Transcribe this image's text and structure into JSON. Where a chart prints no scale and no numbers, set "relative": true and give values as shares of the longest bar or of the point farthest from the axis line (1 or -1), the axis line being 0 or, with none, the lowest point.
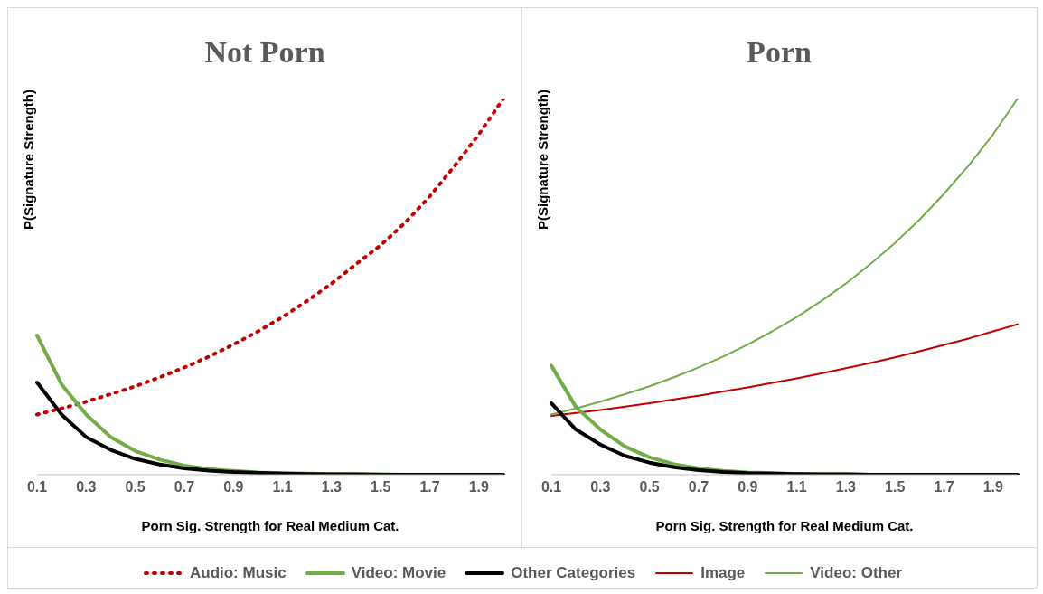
{
  "chart_data": [
    {
      "type": "line",
      "title": "Not Porn",
      "xlabel": "Porn Sig. Strength for Real Medium Cat.",
      "ylabel": "P(Signature Strength)",
      "relative": true,
      "legend": "bottom",
      "grid": false,
      "marker": "none",
      "categories": [
        "0.1",
        null,
        "0.3",
        null,
        "0.5",
        null,
        "0.7",
        null,
        "0.9",
        null,
        "1.1",
        null,
        "1.3",
        null,
        "1.5",
        null,
        "1.7",
        null,
        "1.9",
        null
      ],
      "series": [
        {
          "name": "Audio: Music",
          "color": "#c00000",
          "line_style": "dotted",
          "values": [
            0.16,
            0.176,
            0.194,
            0.214,
            0.235,
            0.259,
            0.285,
            0.314,
            0.346,
            0.381,
            0.419,
            0.462,
            0.508,
            0.56,
            0.61,
            0.67,
            0.74,
            0.82,
            0.905,
            1.0
          ]
        },
        {
          "name": "Video: Movie",
          "color": "#70ad47",
          "line_style": "solid",
          "values": [
            0.37,
            0.24,
            0.16,
            0.1,
            0.063,
            0.04,
            0.024,
            0.015,
            0.01,
            0.006,
            0.004,
            0.003,
            0.002,
            0.001,
            0.001,
            0,
            null,
            null,
            null,
            null
          ]
        },
        {
          "name": "Other Categories",
          "color": "#000000",
          "line_style": "solid",
          "values": [
            0.245,
            0.16,
            0.1,
            0.066,
            0.042,
            0.027,
            0.017,
            0.011,
            0.007,
            0.005,
            0.003,
            0.002,
            0.001,
            0.001,
            0,
            0,
            0,
            0,
            0,
            0
          ]
        }
      ]
    },
    {
      "type": "line",
      "title": "Porn",
      "xlabel": "Porn Sig. Strength for Real Medium Cat.",
      "ylabel": "P(Signature Strength)",
      "relative": true,
      "legend": "bottom",
      "grid": false,
      "marker": "none",
      "categories": [
        "0.1",
        null,
        "0.3",
        null,
        "0.5",
        null,
        "0.7",
        null,
        "0.9",
        null,
        "1.1",
        null,
        "1.3",
        null,
        "1.5",
        null,
        "1.7",
        null,
        "1.9",
        null
      ],
      "series": [
        {
          "name": "Image",
          "color": "#c00000",
          "line_style": "solid",
          "values": [
            0.156,
            0.164,
            0.172,
            0.181,
            0.19,
            0.2,
            0.21,
            0.221,
            0.232,
            0.244,
            0.256,
            0.269,
            0.283,
            0.297,
            0.312,
            0.328,
            0.345,
            0.362,
            0.381,
            0.4
          ]
        },
        {
          "name": "Video: Movie",
          "color": "#70ad47",
          "line_style": "solid",
          "values": [
            0.29,
            0.18,
            0.12,
            0.075,
            0.046,
            0.028,
            0.017,
            0.01,
            0.006,
            0.004,
            0.002,
            0.001,
            0.001,
            0,
            0,
            null,
            null,
            null,
            null,
            null
          ]
        },
        {
          "name": "Video: Other",
          "color": "#70ad47",
          "line_style": "solid",
          "values": [
            0.16,
            0.176,
            0.194,
            0.214,
            0.235,
            0.259,
            0.285,
            0.314,
            0.346,
            0.381,
            0.419,
            0.462,
            0.508,
            0.56,
            0.616,
            0.678,
            0.747,
            0.822,
            0.905,
            1.0
          ]
        },
        {
          "name": "Other Categories",
          "color": "#000000",
          "line_style": "solid",
          "values": [
            0.19,
            0.12,
            0.08,
            0.05,
            0.032,
            0.02,
            0.012,
            0.007,
            0.004,
            0.003,
            0.002,
            0.001,
            0.001,
            0,
            0,
            0,
            0,
            0,
            0,
            0
          ]
        }
      ]
    }
  ]
}
